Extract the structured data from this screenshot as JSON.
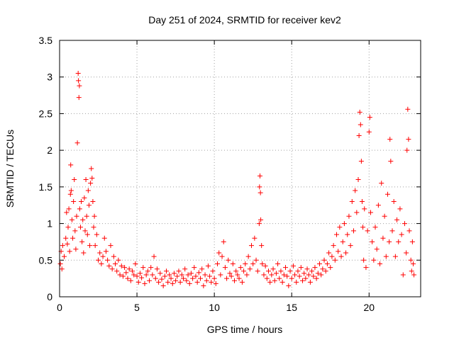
{
  "chart_data": {
    "type": "scatter",
    "title": "Day 251 of 2024, SRMTID for receiver kev2",
    "xlabel": "GPS time / hours",
    "ylabel": "SRMTID / TECUs",
    "xlim": [
      0,
      23.333
    ],
    "ylim": [
      0,
      3.5
    ],
    "xticks": [
      0,
      5,
      10,
      15,
      20
    ],
    "xtick_labels": [
      "0",
      "5",
      "10",
      "15",
      "20"
    ],
    "yticks": [
      0,
      0.5,
      1,
      1.5,
      2,
      2.5,
      3,
      3.5
    ],
    "ytick_labels": [
      "0",
      "0.5",
      "1",
      "1.5",
      "2",
      "2.5",
      "3",
      "3.5"
    ],
    "grid": true,
    "marker": "plus",
    "color": "#ff0000",
    "series": [
      {
        "name": "kev2",
        "points": [
          [
            0.05,
            0.45
          ],
          [
            0.1,
            0.62
          ],
          [
            0.15,
            0.38
          ],
          [
            0.2,
            0.7
          ],
          [
            0.3,
            0.55
          ],
          [
            0.4,
            0.8
          ],
          [
            0.45,
            1.15
          ],
          [
            0.5,
            0.72
          ],
          [
            0.55,
            0.95
          ],
          [
            0.6,
            1.2
          ],
          [
            0.65,
            0.62
          ],
          [
            0.7,
            1.4
          ],
          [
            0.72,
            1.8
          ],
          [
            0.75,
            1.45
          ],
          [
            0.8,
            1.05
          ],
          [
            0.85,
            0.8
          ],
          [
            0.9,
            1.3
          ],
          [
            0.95,
            1.6
          ],
          [
            1.0,
            0.9
          ],
          [
            1.05,
            0.65
          ],
          [
            1.1,
            1.1
          ],
          [
            1.15,
            2.1
          ],
          [
            1.2,
            3.05
          ],
          [
            1.22,
            2.95
          ],
          [
            1.25,
            2.72
          ],
          [
            1.28,
            2.88
          ],
          [
            1.3,
            1.2
          ],
          [
            1.35,
            0.95
          ],
          [
            1.4,
            1.3
          ],
          [
            1.45,
            0.75
          ],
          [
            1.5,
            1.05
          ],
          [
            1.55,
            0.6
          ],
          [
            1.6,
            1.35
          ],
          [
            1.65,
            0.9
          ],
          [
            1.7,
            1.6
          ],
          [
            1.75,
            1.1
          ],
          [
            1.8,
            0.85
          ],
          [
            1.85,
            1.45
          ],
          [
            1.9,
            1.25
          ],
          [
            1.95,
            0.7
          ],
          [
            2.0,
            1.55
          ],
          [
            2.05,
            1.75
          ],
          [
            2.1,
            1.62
          ],
          [
            2.15,
            1.3
          ],
          [
            2.2,
            0.95
          ],
          [
            2.25,
            1.1
          ],
          [
            2.3,
            0.7
          ],
          [
            2.4,
            0.85
          ],
          [
            2.5,
            0.5
          ],
          [
            2.6,
            0.6
          ],
          [
            2.7,
            0.45
          ],
          [
            2.8,
            0.55
          ],
          [
            2.9,
            0.8
          ],
          [
            3.0,
            0.62
          ],
          [
            3.1,
            0.5
          ],
          [
            3.2,
            0.42
          ],
          [
            3.3,
            0.7
          ],
          [
            3.4,
            0.38
          ],
          [
            3.5,
            0.55
          ],
          [
            3.6,
            0.45
          ],
          [
            3.7,
            0.35
          ],
          [
            3.8,
            0.5
          ],
          [
            3.9,
            0.3
          ],
          [
            4.0,
            0.42
          ],
          [
            4.1,
            0.28
          ],
          [
            4.2,
            0.4
          ],
          [
            4.3,
            0.33
          ],
          [
            4.4,
            0.25
          ],
          [
            4.5,
            0.38
          ],
          [
            4.6,
            0.22
          ],
          [
            4.7,
            0.35
          ],
          [
            4.8,
            0.3
          ],
          [
            4.9,
            0.45
          ],
          [
            5.0,
            0.28
          ],
          [
            5.1,
            0.2
          ],
          [
            5.2,
            0.32
          ],
          [
            5.3,
            0.26
          ],
          [
            5.4,
            0.4
          ],
          [
            5.5,
            0.18
          ],
          [
            5.6,
            0.3
          ],
          [
            5.7,
            0.35
          ],
          [
            5.8,
            0.22
          ],
          [
            5.9,
            0.4
          ],
          [
            6.0,
            0.3
          ],
          [
            6.1,
            0.55
          ],
          [
            6.2,
            0.25
          ],
          [
            6.3,
            0.38
          ],
          [
            6.4,
            0.2
          ],
          [
            6.5,
            0.32
          ],
          [
            6.6,
            0.24
          ],
          [
            6.7,
            0.15
          ],
          [
            6.8,
            0.28
          ],
          [
            6.9,
            0.35
          ],
          [
            7.0,
            0.2
          ],
          [
            7.1,
            0.3
          ],
          [
            7.2,
            0.25
          ],
          [
            7.3,
            0.18
          ],
          [
            7.4,
            0.32
          ],
          [
            7.5,
            0.22
          ],
          [
            7.6,
            0.28
          ],
          [
            7.7,
            0.35
          ],
          [
            7.8,
            0.2
          ],
          [
            7.9,
            0.3
          ],
          [
            8.0,
            0.25
          ],
          [
            8.1,
            0.38
          ],
          [
            8.2,
            0.22
          ],
          [
            8.3,
            0.3
          ],
          [
            8.4,
            0.18
          ],
          [
            8.5,
            0.32
          ],
          [
            8.6,
            0.25
          ],
          [
            8.7,
            0.4
          ],
          [
            8.8,
            0.28
          ],
          [
            8.9,
            0.2
          ],
          [
            9.0,
            0.33
          ],
          [
            9.1,
            0.25
          ],
          [
            9.2,
            0.38
          ],
          [
            9.3,
            0.15
          ],
          [
            9.4,
            0.3
          ],
          [
            9.5,
            0.22
          ],
          [
            9.6,
            0.42
          ],
          [
            9.7,
            0.28
          ],
          [
            9.8,
            0.2
          ],
          [
            9.9,
            0.35
          ],
          [
            10.0,
            0.25
          ],
          [
            10.1,
            0.18
          ],
          [
            10.2,
            0.45
          ],
          [
            10.3,
            0.6
          ],
          [
            10.4,
            0.3
          ],
          [
            10.5,
            0.55
          ],
          [
            10.6,
            0.75
          ],
          [
            10.7,
            0.4
          ],
          [
            10.8,
            0.25
          ],
          [
            10.9,
            0.5
          ],
          [
            11.0,
            0.32
          ],
          [
            11.1,
            0.28
          ],
          [
            11.2,
            0.45
          ],
          [
            11.3,
            0.22
          ],
          [
            11.4,
            0.35
          ],
          [
            11.5,
            0.3
          ],
          [
            11.6,
            0.25
          ],
          [
            11.7,
            0.4
          ],
          [
            11.8,
            0.2
          ],
          [
            11.9,
            0.35
          ],
          [
            12.0,
            0.45
          ],
          [
            12.1,
            0.3
          ],
          [
            12.2,
            0.55
          ],
          [
            12.3,
            0.38
          ],
          [
            12.4,
            0.7
          ],
          [
            12.5,
            0.45
          ],
          [
            12.6,
            0.8
          ],
          [
            12.7,
            0.5
          ],
          [
            12.8,
            0.35
          ],
          [
            12.9,
            1.0
          ],
          [
            12.92,
            1.5
          ],
          [
            12.95,
            1.65
          ],
          [
            12.98,
            1.42
          ],
          [
            13.0,
            1.05
          ],
          [
            13.05,
            0.7
          ],
          [
            13.1,
            0.45
          ],
          [
            13.2,
            0.3
          ],
          [
            13.3,
            0.42
          ],
          [
            13.4,
            0.25
          ],
          [
            13.5,
            0.35
          ],
          [
            13.6,
            0.2
          ],
          [
            13.7,
            0.3
          ],
          [
            13.8,
            0.38
          ],
          [
            13.9,
            0.22
          ],
          [
            14.0,
            0.32
          ],
          [
            14.1,
            0.45
          ],
          [
            14.2,
            0.25
          ],
          [
            14.3,
            0.35
          ],
          [
            14.4,
            0.2
          ],
          [
            14.5,
            0.3
          ],
          [
            14.6,
            0.4
          ],
          [
            14.7,
            0.28
          ],
          [
            14.8,
            0.15
          ],
          [
            14.9,
            0.35
          ],
          [
            15.0,
            0.25
          ],
          [
            15.1,
            0.42
          ],
          [
            15.2,
            0.3
          ],
          [
            15.3,
            0.2
          ],
          [
            15.4,
            0.35
          ],
          [
            15.5,
            0.28
          ],
          [
            15.6,
            0.4
          ],
          [
            15.7,
            0.22
          ],
          [
            15.8,
            0.32
          ],
          [
            15.9,
            0.25
          ],
          [
            16.0,
            0.38
          ],
          [
            16.1,
            0.3
          ],
          [
            16.2,
            0.2
          ],
          [
            16.3,
            0.35
          ],
          [
            16.4,
            0.28
          ],
          [
            16.5,
            0.4
          ],
          [
            16.6,
            0.25
          ],
          [
            16.7,
            0.32
          ],
          [
            16.8,
            0.45
          ],
          [
            16.9,
            0.3
          ],
          [
            17.0,
            0.38
          ],
          [
            17.1,
            0.5
          ],
          [
            17.2,
            0.35
          ],
          [
            17.3,
            0.45
          ],
          [
            17.4,
            0.6
          ],
          [
            17.5,
            0.4
          ],
          [
            17.6,
            0.55
          ],
          [
            17.7,
            0.7
          ],
          [
            17.8,
            0.5
          ],
          [
            17.9,
            0.85
          ],
          [
            18.0,
            0.62
          ],
          [
            18.1,
            0.95
          ],
          [
            18.2,
            0.55
          ],
          [
            18.3,
            0.75
          ],
          [
            18.4,
            1.0
          ],
          [
            18.5,
            0.6
          ],
          [
            18.6,
            0.85
          ],
          [
            18.7,
            1.1
          ],
          [
            18.8,
            0.7
          ],
          [
            18.9,
            1.3
          ],
          [
            19.0,
            0.9
          ],
          [
            19.1,
            1.45
          ],
          [
            19.2,
            1.15
          ],
          [
            19.3,
            1.6
          ],
          [
            19.35,
            2.2
          ],
          [
            19.4,
            2.52
          ],
          [
            19.45,
            2.35
          ],
          [
            19.5,
            1.85
          ],
          [
            19.55,
            1.3
          ],
          [
            19.6,
            0.95
          ],
          [
            19.65,
            0.5
          ],
          [
            19.7,
            1.2
          ],
          [
            19.8,
            0.4
          ],
          [
            19.9,
            0.9
          ],
          [
            20.0,
            2.25
          ],
          [
            20.05,
            2.45
          ],
          [
            20.1,
            1.15
          ],
          [
            20.2,
            0.75
          ],
          [
            20.3,
            0.5
          ],
          [
            20.4,
            0.95
          ],
          [
            20.5,
            0.65
          ],
          [
            20.6,
            1.25
          ],
          [
            20.7,
            0.45
          ],
          [
            20.8,
            1.55
          ],
          [
            20.9,
            0.8
          ],
          [
            21.0,
            1.1
          ],
          [
            21.1,
            0.55
          ],
          [
            21.2,
            1.4
          ],
          [
            21.3,
            0.75
          ],
          [
            21.35,
            2.15
          ],
          [
            21.4,
            1.85
          ],
          [
            21.5,
            0.9
          ],
          [
            21.6,
            1.3
          ],
          [
            21.7,
            0.55
          ],
          [
            21.8,
            1.05
          ],
          [
            21.9,
            0.75
          ],
          [
            22.0,
            1.2
          ],
          [
            22.1,
            0.85
          ],
          [
            22.2,
            0.3
          ],
          [
            22.3,
            1.0
          ],
          [
            22.4,
            0.6
          ],
          [
            22.45,
            2.0
          ],
          [
            22.5,
            2.56
          ],
          [
            22.55,
            2.15
          ],
          [
            22.6,
            0.9
          ],
          [
            22.7,
            0.5
          ],
          [
            22.75,
            0.35
          ],
          [
            22.8,
            0.75
          ],
          [
            22.85,
            0.45
          ],
          [
            22.9,
            0.3
          ]
        ]
      }
    ]
  }
}
